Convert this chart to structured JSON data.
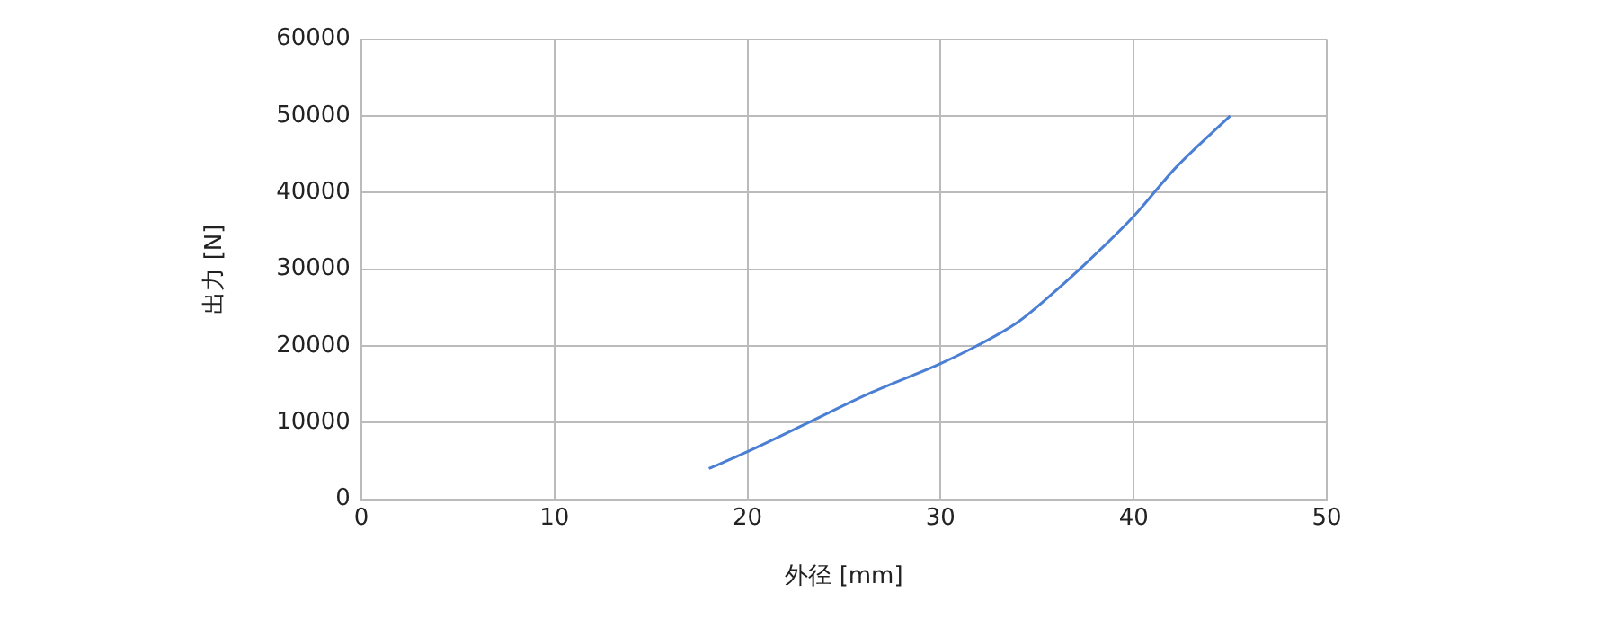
{
  "chart_data": {
    "type": "line",
    "xlabel": "外径 [mm]",
    "ylabel": "出力 [N]",
    "series": [
      {
        "color": "#4a7fd4",
        "x": [
          18,
          20,
          23,
          26.4,
          30,
          31.8,
          34,
          35.6,
          37.2,
          40,
          42.2,
          45
        ],
        "values": [
          4000,
          6200,
          9800,
          13900,
          17700,
          19900,
          23100,
          26400,
          30000,
          36900,
          43300,
          50000
        ]
      }
    ],
    "xlim": [
      0,
      50
    ],
    "xticks": [
      0,
      10,
      20,
      30,
      40,
      50
    ],
    "ylim": [
      0,
      60000
    ],
    "yticks": [
      0,
      10000,
      20000,
      30000,
      40000,
      50000,
      60000
    ],
    "grid": true,
    "legend": false,
    "marker": "none",
    "line_style": "solid"
  }
}
